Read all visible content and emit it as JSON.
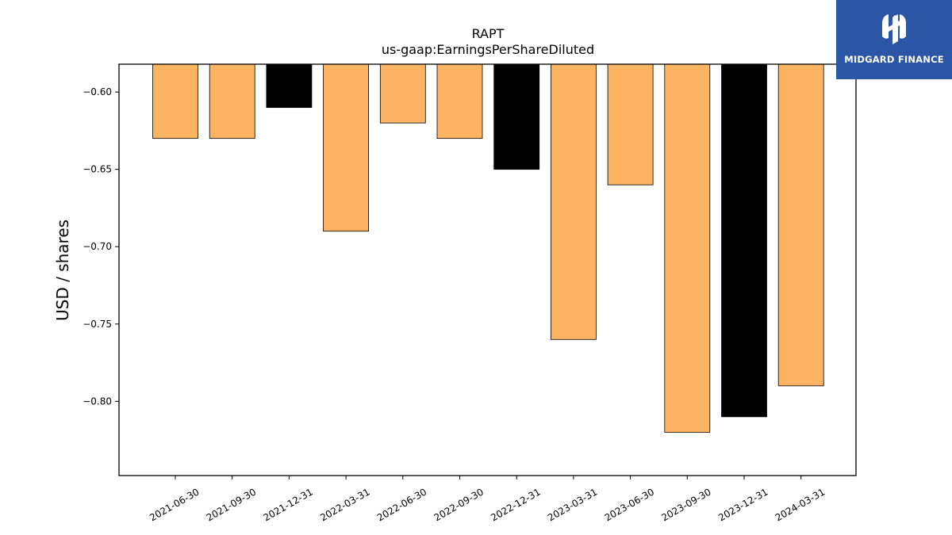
{
  "brand": {
    "name": "MIDGARD FINANCE",
    "color": "#2b56a6"
  },
  "chart_data": {
    "type": "bar",
    "title": "RAPT",
    "subtitle": "us-gaap:EarningsPerShareDiluted",
    "xlabel": "",
    "ylabel": "USD / shares",
    "categories": [
      "2021-06-30",
      "2021-09-30",
      "2021-12-31",
      "2022-03-31",
      "2022-06-30",
      "2022-09-30",
      "2022-12-31",
      "2023-03-31",
      "2023-06-30",
      "2023-09-30",
      "2023-12-31",
      "2024-03-31"
    ],
    "values": [
      -0.63,
      -0.63,
      -0.61,
      -0.69,
      -0.62,
      -0.63,
      -0.65,
      -0.76,
      -0.66,
      -0.82,
      -0.81,
      -0.79
    ],
    "bar_colors": [
      "#fdb462",
      "#fdb462",
      "#000000",
      "#fdb462",
      "#fdb462",
      "#fdb462",
      "#000000",
      "#fdb462",
      "#fdb462",
      "#fdb462",
      "#000000",
      "#fdb462"
    ],
    "ylim": [
      -0.848,
      -0.582
    ],
    "yticks": [
      -0.6,
      -0.65,
      -0.7,
      -0.75,
      -0.8
    ],
    "ytick_labels": [
      "−0.60",
      "−0.65",
      "−0.70",
      "−0.75",
      "−0.80"
    ],
    "grid": false,
    "legend": "none"
  }
}
